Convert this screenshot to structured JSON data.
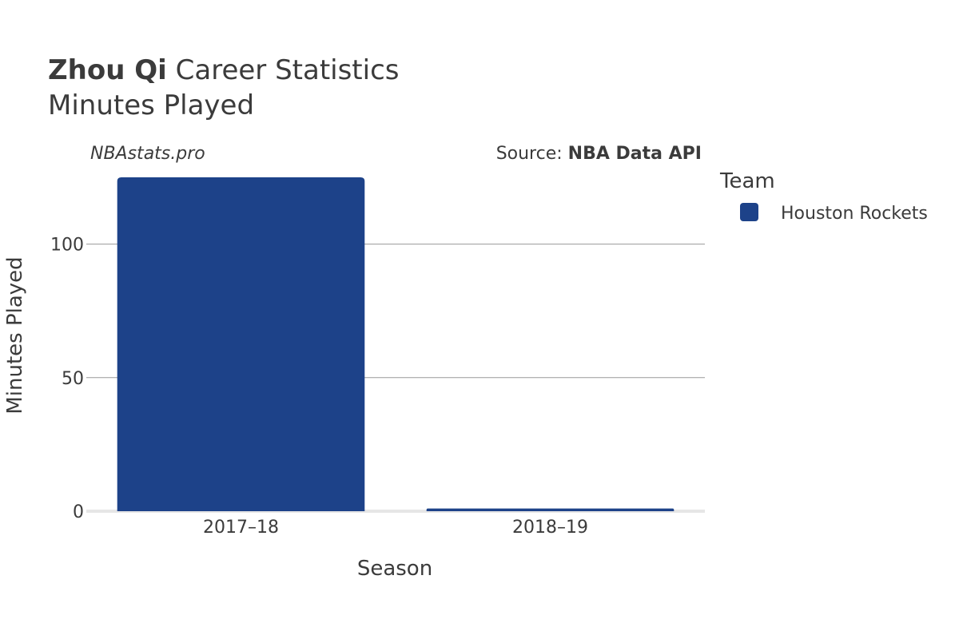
{
  "header": {
    "player_name": "Zhou Qi",
    "title_suffix": "Career Statistics",
    "subtitle": "Minutes Played"
  },
  "watermark": "NBAstats.pro",
  "source": {
    "prefix": "Source: ",
    "name": "NBA Data API"
  },
  "legend": {
    "title": "Team",
    "entries": [
      {
        "label": "Houston Rockets",
        "color": "#1d4289"
      }
    ]
  },
  "chart_data": {
    "type": "bar",
    "title": "Zhou Qi Career Statistics — Minutes Played",
    "xlabel": "Season",
    "ylabel": "Minutes Played",
    "categories": [
      "2017–18",
      "2018–19"
    ],
    "series": [
      {
        "name": "Houston Rockets",
        "values": [
          125,
          1
        ],
        "color": "#1d4289"
      }
    ],
    "ylim": [
      0,
      125
    ],
    "yticks": [
      0,
      50,
      100
    ],
    "ytick_labels": [
      "0",
      "50",
      "100"
    ],
    "grid": true,
    "legend_position": "right"
  }
}
